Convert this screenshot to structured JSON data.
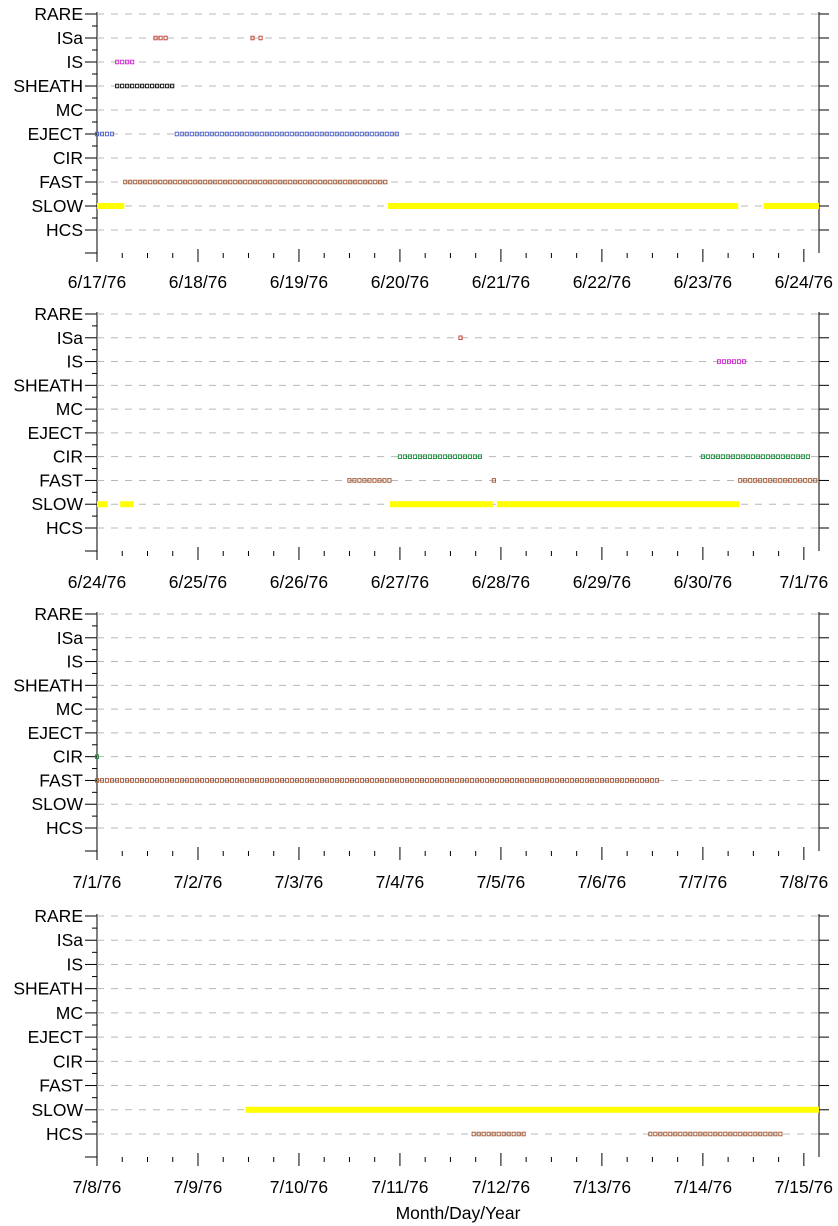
{
  "chart_data": [
    {
      "type": "timeline",
      "panel": 1,
      "categories": [
        "RARE",
        "ISa",
        "IS",
        "SHEATH",
        "MC",
        "EJECT",
        "CIR",
        "FAST",
        "SLOW",
        "HCS"
      ],
      "x_ticks": [
        "6/17/76",
        "6/18/76",
        "6/19/76",
        "6/20/76",
        "6/21/76",
        "6/22/76",
        "6/23/76",
        "6/24/76"
      ],
      "xlim": [
        0,
        7.15
      ],
      "grid": "dashed horizontal",
      "series": [
        {
          "category": "ISa",
          "style": "markers",
          "color": "#c0392b",
          "intervals": [
            [
              0.58,
              0.68
            ],
            [
              1.54,
              1.56
            ],
            [
              1.62,
              1.64
            ]
          ]
        },
        {
          "category": "IS",
          "style": "markers",
          "color": "#d020d0",
          "intervals": [
            [
              0.2,
              0.35
            ]
          ]
        },
        {
          "category": "SHEATH",
          "style": "markers",
          "color": "#000000",
          "intervals": [
            [
              0.2,
              0.78
            ]
          ]
        },
        {
          "category": "EJECT",
          "style": "markers",
          "color": "#4a5fc1",
          "intervals": [
            [
              0.0,
              0.19
            ],
            [
              0.79,
              3.0
            ]
          ]
        },
        {
          "category": "FAST",
          "style": "markers",
          "color": "#a0522d",
          "intervals": [
            [
              0.28,
              2.88
            ]
          ]
        },
        {
          "category": "SLOW",
          "style": "bar",
          "color": "#ffff00",
          "intervals": [
            [
              0.0,
              0.27
            ],
            [
              2.88,
              6.35
            ],
            [
              6.6,
              7.15
            ]
          ]
        }
      ]
    },
    {
      "type": "timeline",
      "panel": 2,
      "categories": [
        "RARE",
        "ISa",
        "IS",
        "SHEATH",
        "MC",
        "EJECT",
        "CIR",
        "FAST",
        "SLOW",
        "HCS"
      ],
      "x_ticks": [
        "6/24/76",
        "6/25/76",
        "6/26/76",
        "6/27/76",
        "6/28/76",
        "6/29/76",
        "6/30/76",
        "7/1/76"
      ],
      "xlim": [
        0,
        7.15
      ],
      "grid": "dashed horizontal",
      "series": [
        {
          "category": "ISa",
          "style": "markers",
          "color": "#c0392b",
          "intervals": [
            [
              3.6,
              3.62
            ]
          ]
        },
        {
          "category": "IS",
          "style": "markers",
          "color": "#d020d0",
          "intervals": [
            [
              6.16,
              6.44
            ]
          ]
        },
        {
          "category": "CIR",
          "style": "markers",
          "color": "#1a8a3a",
          "intervals": [
            [
              3.0,
              3.83
            ],
            [
              6.0,
              7.04
            ]
          ]
        },
        {
          "category": "FAST",
          "style": "markers",
          "color": "#a0522d",
          "intervals": [
            [
              2.5,
              2.92
            ],
            [
              3.93,
              3.95
            ],
            [
              6.37,
              7.15
            ]
          ]
        },
        {
          "category": "SLOW",
          "style": "bar",
          "color": "#ffff00",
          "intervals": [
            [
              0.0,
              0.1
            ],
            [
              0.23,
              0.36
            ],
            [
              2.9,
              3.92
            ],
            [
              3.96,
              6.36
            ]
          ]
        }
      ]
    },
    {
      "type": "timeline",
      "panel": 3,
      "categories": [
        "RARE",
        "ISa",
        "IS",
        "SHEATH",
        "MC",
        "EJECT",
        "CIR",
        "FAST",
        "SLOW",
        "HCS"
      ],
      "x_ticks": [
        "7/1/76",
        "7/2/76",
        "7/3/76",
        "7/4/76",
        "7/5/76",
        "7/6/76",
        "7/7/76",
        "7/8/76"
      ],
      "xlim": [
        0,
        7.15
      ],
      "grid": "dashed horizontal",
      "series": [
        {
          "category": "CIR",
          "style": "markers",
          "color": "#1a8a3a",
          "intervals": [
            [
              0.0,
              0.02
            ]
          ]
        },
        {
          "category": "FAST",
          "style": "markers",
          "color": "#a0522d",
          "intervals": [
            [
              0.0,
              5.57
            ]
          ]
        }
      ]
    },
    {
      "type": "timeline",
      "panel": 4,
      "categories": [
        "RARE",
        "ISa",
        "IS",
        "SHEATH",
        "MC",
        "EJECT",
        "CIR",
        "FAST",
        "SLOW",
        "HCS"
      ],
      "x_ticks": [
        "7/8/76",
        "7/9/76",
        "7/10/76",
        "7/11/76",
        "7/12/76",
        "7/13/76",
        "7/14/76",
        "7/15/76"
      ],
      "xlim": [
        0,
        7.15
      ],
      "grid": "dashed horizontal",
      "xlabel": "Month/Day/Year",
      "series": [
        {
          "category": "SLOW",
          "style": "bar",
          "color": "#ffff00",
          "intervals": [
            [
              1.47,
              7.15
            ]
          ]
        },
        {
          "category": "HCS",
          "style": "markers",
          "color": "#a0522d",
          "intervals": [
            [
              3.73,
              4.27
            ],
            [
              5.48,
              6.8
            ]
          ]
        }
      ]
    }
  ]
}
